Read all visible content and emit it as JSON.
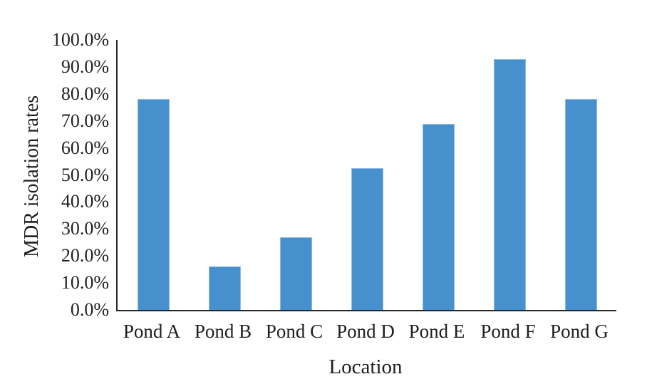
{
  "figure": {
    "background_color": "#ffffff",
    "text_color": "#1f1f1f",
    "axis_color": "#262626"
  },
  "chart_data": {
    "type": "bar",
    "title": "",
    "xlabel": "Location",
    "ylabel": "MDR isolation rates",
    "categories": [
      "Pond A",
      "Pond B",
      "Pond C",
      "Pond D",
      "Pond E",
      "Pond F",
      "Pond G"
    ],
    "values": [
      78,
      16,
      27,
      52.5,
      69,
      93,
      78
    ],
    "value_unit": "%",
    "ylim": [
      0,
      100
    ],
    "y_tick_step": 10,
    "y_tick_labels": [
      "0.0%",
      "10.0%",
      "20.0%",
      "30.0%",
      "40.0%",
      "50.0%",
      "60.0%",
      "70.0%",
      "80.0%",
      "90.0%",
      "100.0%"
    ],
    "grid": false,
    "legend_position": "none",
    "bar_color": "#4690CD",
    "bar_border_color": "#8FBCE6"
  }
}
